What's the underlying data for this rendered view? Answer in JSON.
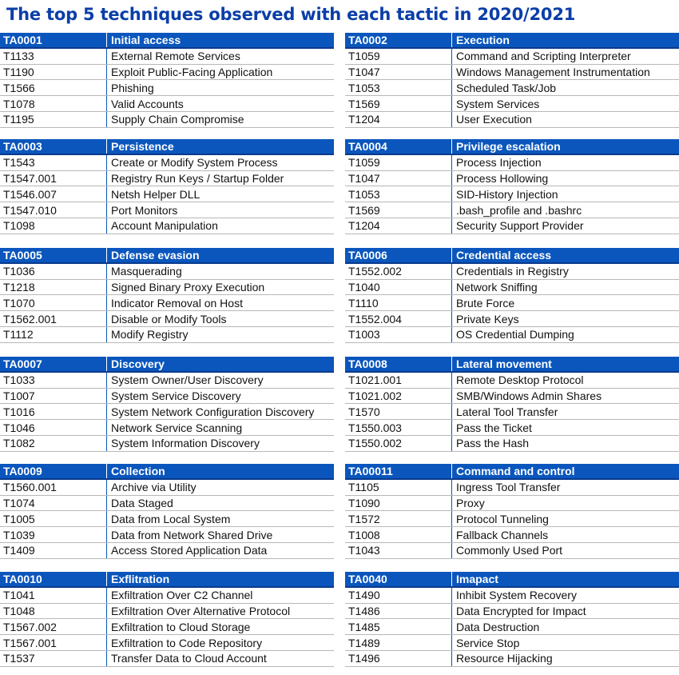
{
  "title": "The top 5 techniques observed with each tactic in 2020/2021",
  "tactics": [
    {
      "id": "TA0001",
      "name": "Initial access",
      "techniques": [
        {
          "id": "T1133",
          "name": "External Remote Services"
        },
        {
          "id": "T1190",
          "name": "Exploit Public-Facing Application"
        },
        {
          "id": "T1566",
          "name": "Phishing"
        },
        {
          "id": "T1078",
          "name": "Valid Accounts"
        },
        {
          "id": "T1195",
          "name": "Supply Chain Compromise"
        }
      ]
    },
    {
      "id": "TA0002",
      "name": "Execution",
      "techniques": [
        {
          "id": "T1059",
          "name": "Command and Scripting Interpreter"
        },
        {
          "id": "T1047",
          "name": "Windows Management Instrumentation"
        },
        {
          "id": "T1053",
          "name": "Scheduled Task/Job"
        },
        {
          "id": "T1569",
          "name": "System Services"
        },
        {
          "id": "T1204",
          "name": "User Execution"
        }
      ]
    },
    {
      "id": "TA0003",
      "name": "Persistence",
      "techniques": [
        {
          "id": "T1543",
          "name": "Create or Modify System Process"
        },
        {
          "id": "T1547.001",
          "name": "Registry Run Keys / Startup Folder"
        },
        {
          "id": "T1546.007",
          "name": "Netsh Helper DLL"
        },
        {
          "id": "T1547.010",
          "name": "Port Monitors"
        },
        {
          "id": "T1098",
          "name": "Account Manipulation"
        }
      ]
    },
    {
      "id": "TA0004",
      "name": "Privilege escalation",
      "techniques": [
        {
          "id": "T1059",
          "name": "Process Injection"
        },
        {
          "id": "T1047",
          "name": "Process Hollowing"
        },
        {
          "id": "T1053",
          "name": "SID-History Injection"
        },
        {
          "id": "T1569",
          "name": ".bash_profile and .bashrc"
        },
        {
          "id": "T1204",
          "name": "Security Support Provider"
        }
      ]
    },
    {
      "id": "TA0005",
      "name": "Defense evasion",
      "techniques": [
        {
          "id": "T1036",
          "name": "Masquerading"
        },
        {
          "id": "T1218",
          "name": "Signed Binary Proxy Execution"
        },
        {
          "id": "T1070",
          "name": "Indicator Removal on Host"
        },
        {
          "id": "T1562.001",
          "name": "Disable or Modify Tools"
        },
        {
          "id": "T1112",
          "name": "Modify Registry"
        }
      ]
    },
    {
      "id": "TA0006",
      "name": "Credential access",
      "techniques": [
        {
          "id": "T1552.002",
          "name": "Credentials in Registry"
        },
        {
          "id": "T1040",
          "name": "Network Sniffing"
        },
        {
          "id": "T1110",
          "name": "Brute Force"
        },
        {
          "id": "T1552.004",
          "name": "Private Keys"
        },
        {
          "id": "T1003",
          "name": "OS Credential Dumping"
        }
      ]
    },
    {
      "id": "TA0007",
      "name": "Discovery",
      "techniques": [
        {
          "id": "T1033",
          "name": "System Owner/User Discovery"
        },
        {
          "id": "T1007",
          "name": "System Service Discovery"
        },
        {
          "id": "T1016",
          "name": "System Network Configuration Discovery"
        },
        {
          "id": "T1046",
          "name": "Network Service Scanning"
        },
        {
          "id": "T1082",
          "name": "System Information Discovery"
        }
      ]
    },
    {
      "id": "TA0008",
      "name": "Lateral movement",
      "techniques": [
        {
          "id": "T1021.001",
          "name": "Remote Desktop Protocol"
        },
        {
          "id": "T1021.002",
          "name": "SMB/Windows Admin Shares"
        },
        {
          "id": "T1570",
          "name": "Lateral Tool Transfer"
        },
        {
          "id": "T1550.003",
          "name": "Pass the Ticket"
        },
        {
          "id": "T1550.002",
          "name": "Pass the Hash"
        }
      ]
    },
    {
      "id": "TA0009",
      "name": "Collection",
      "techniques": [
        {
          "id": "T1560.001",
          "name": "Archive via Utility"
        },
        {
          "id": "T1074",
          "name": "Data Staged"
        },
        {
          "id": "T1005",
          "name": "Data from Local System"
        },
        {
          "id": "T1039",
          "name": "Data from Network Shared Drive"
        },
        {
          "id": "T1409",
          "name": "Access Stored Application Data"
        }
      ]
    },
    {
      "id": "TA00011",
      "name": "Command and control",
      "techniques": [
        {
          "id": "T1105",
          "name": "Ingress Tool Transfer"
        },
        {
          "id": "T1090",
          "name": "Proxy"
        },
        {
          "id": "T1572",
          "name": "Protocol Tunneling"
        },
        {
          "id": "T1008",
          "name": "Fallback Channels"
        },
        {
          "id": "T1043",
          "name": "Commonly Used Port"
        }
      ]
    },
    {
      "id": "TA0010",
      "name": "Exflitration",
      "techniques": [
        {
          "id": "T1041",
          "name": "Exfiltration Over C2 Channel"
        },
        {
          "id": "T1048",
          "name": "Exfiltration Over Alternative Protocol"
        },
        {
          "id": "T1567.002",
          "name": "Exfiltration to Cloud Storage"
        },
        {
          "id": "T1567.001",
          "name": "Exfiltration to Code Repository"
        },
        {
          "id": "T1537",
          "name": "Transfer Data to Cloud Account"
        }
      ]
    },
    {
      "id": "TA0040",
      "name": "Imapact",
      "techniques": [
        {
          "id": "T1490",
          "name": "Inhibit System Recovery"
        },
        {
          "id": "T1486",
          "name": "Data Encrypted for Impact"
        },
        {
          "id": "T1485",
          "name": "Data Destruction"
        },
        {
          "id": "T1489",
          "name": "Service Stop"
        },
        {
          "id": "T1496",
          "name": "Resource Hijacking"
        }
      ]
    }
  ]
}
